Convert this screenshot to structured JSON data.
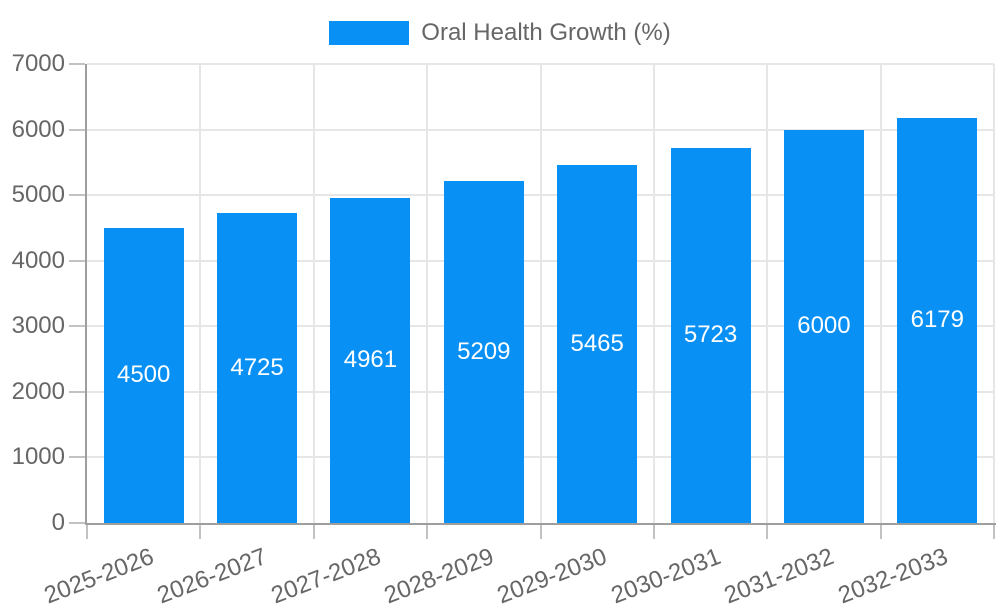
{
  "chart": {
    "legend_label": "Oral Health Growth (%)"
  },
  "chart_data": {
    "type": "bar",
    "title": "Oral Health Growth (%)",
    "categories": [
      "2025-2026",
      "2026-2027",
      "2027-2028",
      "2028-2029",
      "2029-2030",
      "2030-2031",
      "2031-2032",
      "2032-2033"
    ],
    "values": [
      4500,
      4725,
      4961,
      5209,
      5465,
      5723,
      6000,
      6179
    ],
    "bar_value_labels": [
      "4500",
      "4725",
      "4961",
      "5209",
      "5465",
      "5723",
      "6000",
      "6179"
    ],
    "ytick_labels": [
      "0",
      "1000",
      "2000",
      "3000",
      "4000",
      "5000",
      "6000",
      "7000"
    ],
    "ylim": [
      0,
      7000
    ],
    "ytick_step": 1000,
    "xlabel": "",
    "ylabel": "",
    "grid": true,
    "legend_position": "top",
    "colors": {
      "bar": "#0890F5",
      "bar_value_text": "#ffffff",
      "axis_line": "#9e9e9e",
      "gridline": "#e6e6e6",
      "tick_text": "#666666",
      "legend_text": "#666666"
    }
  }
}
